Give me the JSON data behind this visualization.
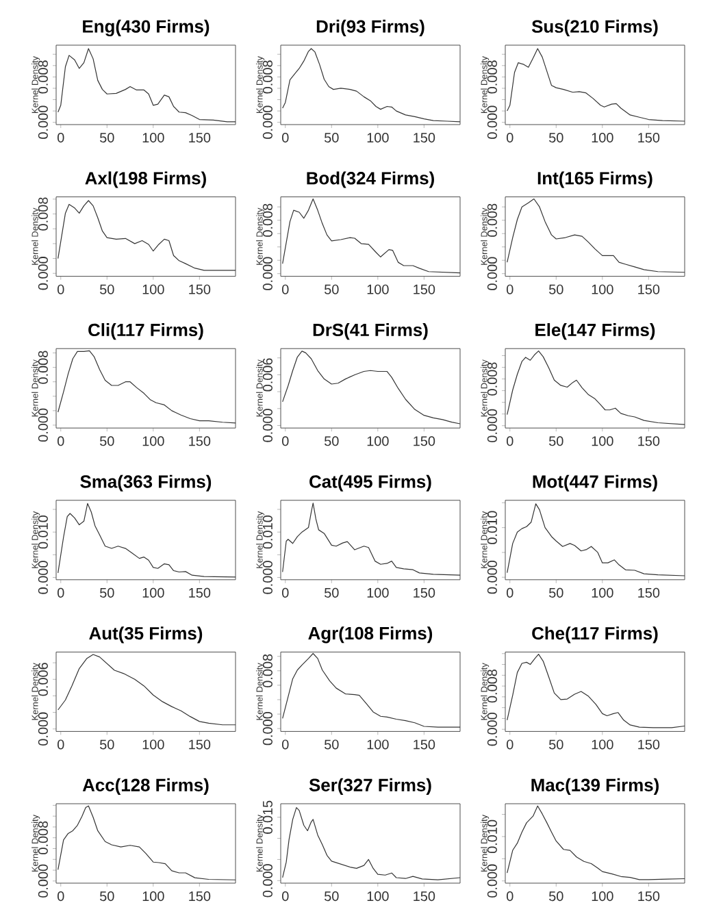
{
  "chart_data": [
    {
      "type": "line",
      "title": "Eng(430 Firms)",
      "ylabel": "Kernel Density",
      "xlim": [
        -5,
        189
      ],
      "ylim": [
        -0.0004,
        0.0136
      ],
      "xticks": [
        0,
        50,
        100,
        150
      ],
      "yticks": [
        {
          "value": 0,
          "label": "0.000"
        },
        {
          "value": 0.002,
          "label": null
        },
        {
          "value": 0.004,
          "label": null
        },
        {
          "value": 0.006,
          "label": null
        },
        {
          "value": 0.008,
          "label": "0.008"
        },
        {
          "value": 0.01,
          "label": null
        },
        {
          "value": 0.012,
          "label": null
        }
      ],
      "series": [
        {
          "color": "#333333",
          "x": [
            -3,
            0,
            5,
            9,
            15,
            20,
            25,
            30,
            35,
            40,
            45,
            50,
            60,
            70,
            75,
            82,
            90,
            95,
            100,
            105,
            112,
            117,
            122,
            128,
            135,
            142,
            150,
            165,
            180,
            189
          ],
          "values": [
            0.0018,
            0.003,
            0.0098,
            0.0118,
            0.011,
            0.0095,
            0.0105,
            0.013,
            0.0112,
            0.0074,
            0.0058,
            0.005,
            0.0051,
            0.0058,
            0.0063,
            0.0057,
            0.0057,
            0.005,
            0.003,
            0.0032,
            0.0048,
            0.0045,
            0.0028,
            0.0018,
            0.0017,
            0.0012,
            0.0005,
            0.0004,
            0.0001,
            0.0001
          ]
        }
      ]
    },
    {
      "type": "line",
      "title": "Dri(93 Firms)",
      "ylabel": "Kernel Density",
      "xlim": [
        -5,
        189
      ],
      "ylim": [
        -0.0004,
        0.0136
      ],
      "xticks": [
        0,
        50,
        100,
        150
      ],
      "yticks": [
        {
          "value": 0,
          "label": "0.000"
        },
        {
          "value": 0.002,
          "label": null
        },
        {
          "value": 0.004,
          "label": null
        },
        {
          "value": 0.006,
          "label": null
        },
        {
          "value": 0.008,
          "label": "0.008"
        },
        {
          "value": 0.01,
          "label": null
        },
        {
          "value": 0.012,
          "label": null
        }
      ],
      "series": [
        {
          "color": "#333333",
          "x": [
            -3,
            0,
            5,
            10,
            15,
            20,
            25,
            28,
            32,
            37,
            42,
            47,
            52,
            60,
            70,
            77,
            85,
            92,
            98,
            103,
            110,
            115,
            120,
            130,
            140,
            150,
            160,
            175,
            189
          ],
          "values": [
            0.0025,
            0.0035,
            0.0075,
            0.0085,
            0.0095,
            0.0108,
            0.0125,
            0.013,
            0.0124,
            0.0102,
            0.0076,
            0.0063,
            0.0058,
            0.006,
            0.0058,
            0.0055,
            0.0045,
            0.0038,
            0.0028,
            0.0023,
            0.0028,
            0.0027,
            0.002,
            0.0013,
            0.001,
            0.0006,
            0.0003,
            0.0002,
            0.0001
          ]
        }
      ]
    },
    {
      "type": "line",
      "title": "Sus(210 Firms)",
      "ylabel": "Kernel Density",
      "xlim": [
        -5,
        189
      ],
      "ylim": [
        -0.0004,
        0.0136
      ],
      "xticks": [
        0,
        50,
        100,
        150
      ],
      "yticks": [
        {
          "value": 0,
          "label": "0.000"
        },
        {
          "value": 0.002,
          "label": null
        },
        {
          "value": 0.004,
          "label": null
        },
        {
          "value": 0.006,
          "label": null
        },
        {
          "value": 0.008,
          "label": "0.008"
        },
        {
          "value": 0.01,
          "label": null
        },
        {
          "value": 0.012,
          "label": null
        }
      ],
      "series": [
        {
          "color": "#333333",
          "x": [
            -3,
            0,
            5,
            9,
            15,
            20,
            25,
            30,
            35,
            40,
            45,
            50,
            58,
            68,
            75,
            82,
            90,
            98,
            102,
            110,
            115,
            120,
            130,
            140,
            150,
            165,
            189
          ],
          "values": [
            0.002,
            0.003,
            0.0088,
            0.0105,
            0.0102,
            0.0097,
            0.0113,
            0.013,
            0.0115,
            0.009,
            0.0065,
            0.0061,
            0.0058,
            0.0053,
            0.0054,
            0.0052,
            0.0042,
            0.003,
            0.0027,
            0.0032,
            0.0033,
            0.0025,
            0.0013,
            0.0009,
            0.0005,
            0.0003,
            0.0002
          ]
        }
      ]
    },
    {
      "type": "line",
      "title": "Axl(198 Firms)",
      "ylabel": "Kernel Density",
      "xlim": [
        -5,
        189
      ],
      "ylim": [
        -0.0004,
        0.0103
      ],
      "xticks": [
        0,
        50,
        100,
        150
      ],
      "yticks": [
        {
          "value": 0,
          "label": "0.000"
        },
        {
          "value": 0.002,
          "label": null
        },
        {
          "value": 0.004,
          "label": null
        },
        {
          "value": 0.006,
          "label": null
        },
        {
          "value": 0.008,
          "label": "0.008"
        },
        {
          "value": 0.01,
          "label": null
        }
      ],
      "series": [
        {
          "color": "#333333",
          "x": [
            -3,
            5,
            9,
            15,
            20,
            25,
            30,
            35,
            40,
            45,
            50,
            60,
            70,
            80,
            88,
            95,
            100,
            106,
            112,
            117,
            122,
            128,
            135,
            145,
            155,
            170,
            189
          ],
          "values": [
            0.002,
            0.0081,
            0.0093,
            0.0088,
            0.0081,
            0.0091,
            0.0098,
            0.0091,
            0.0075,
            0.0057,
            0.0048,
            0.0046,
            0.0047,
            0.004,
            0.0044,
            0.0039,
            0.003,
            0.0039,
            0.0046,
            0.0044,
            0.0024,
            0.0017,
            0.0013,
            0.0007,
            0.0004,
            0.0004,
            0.0004
          ]
        }
      ]
    },
    {
      "type": "line",
      "title": "Bod(324 Firms)",
      "ylabel": "Kernel Density",
      "xlim": [
        -5,
        189
      ],
      "ylim": [
        -0.0004,
        0.0115
      ],
      "xticks": [
        0,
        50,
        100,
        150
      ],
      "yticks": [
        {
          "value": 0,
          "label": "0.000"
        },
        {
          "value": 0.002,
          "label": null
        },
        {
          "value": 0.004,
          "label": null
        },
        {
          "value": 0.006,
          "label": null
        },
        {
          "value": 0.008,
          "label": "0.008"
        },
        {
          "value": 0.01,
          "label": null
        }
      ],
      "series": [
        {
          "color": "#333333",
          "x": [
            -3,
            5,
            9,
            15,
            20,
            25,
            30,
            35,
            40,
            45,
            50,
            60,
            70,
            75,
            82,
            90,
            98,
            103,
            112,
            116,
            122,
            128,
            138,
            145,
            155,
            189
          ],
          "values": [
            0.0015,
            0.0078,
            0.0095,
            0.0092,
            0.0083,
            0.0095,
            0.0112,
            0.0095,
            0.0075,
            0.0058,
            0.0049,
            0.0051,
            0.0054,
            0.0053,
            0.0045,
            0.0044,
            0.0032,
            0.0025,
            0.0036,
            0.0035,
            0.0017,
            0.0012,
            0.0012,
            0.0008,
            0.0003,
            0.0001
          ]
        }
      ]
    },
    {
      "type": "line",
      "title": "Int(165 Firms)",
      "ylabel": "Kernel Density",
      "xlim": [
        -5,
        189
      ],
      "ylim": [
        -0.0004,
        0.0115
      ],
      "xticks": [
        0,
        50,
        100,
        150
      ],
      "yticks": [
        {
          "value": 0,
          "label": "0.000"
        },
        {
          "value": 0.002,
          "label": null
        },
        {
          "value": 0.004,
          "label": null
        },
        {
          "value": 0.006,
          "label": null
        },
        {
          "value": 0.008,
          "label": "0.008"
        },
        {
          "value": 0.01,
          "label": null
        }
      ],
      "series": [
        {
          "color": "#333333",
          "x": [
            -3,
            3,
            8,
            13,
            20,
            26,
            32,
            38,
            45,
            50,
            60,
            70,
            78,
            85,
            92,
            100,
            105,
            112,
            118,
            125,
            135,
            145,
            160,
            189
          ],
          "values": [
            0.0017,
            0.0054,
            0.0081,
            0.01,
            0.0106,
            0.0112,
            0.01,
            0.0078,
            0.0058,
            0.0052,
            0.0054,
            0.0058,
            0.0056,
            0.0047,
            0.0037,
            0.0027,
            0.0027,
            0.0027,
            0.0017,
            0.0014,
            0.001,
            0.0006,
            0.0003,
            0.0002
          ]
        }
      ]
    },
    {
      "type": "line",
      "title": "Cli(117 Firms)",
      "ylabel": "Kernel Density",
      "xlim": [
        -5,
        189
      ],
      "ylim": [
        -0.0004,
        0.0106
      ],
      "xticks": [
        0,
        50,
        100,
        150
      ],
      "yticks": [
        {
          "value": 0,
          "label": "0.000"
        },
        {
          "value": 0.002,
          "label": null
        },
        {
          "value": 0.004,
          "label": null
        },
        {
          "value": 0.006,
          "label": null
        },
        {
          "value": 0.008,
          "label": "0.008"
        },
        {
          "value": 0.01,
          "label": null
        }
      ],
      "series": [
        {
          "color": "#333333",
          "x": [
            -3,
            3,
            8,
            13,
            18,
            25,
            31,
            36,
            42,
            48,
            55,
            62,
            70,
            75,
            82,
            90,
            97,
            103,
            112,
            120,
            130,
            140,
            150,
            160,
            175,
            189
          ],
          "values": [
            0.0018,
            0.0046,
            0.0071,
            0.0092,
            0.0102,
            0.0102,
            0.0103,
            0.0095,
            0.0077,
            0.0062,
            0.0055,
            0.0055,
            0.006,
            0.006,
            0.0052,
            0.0044,
            0.0035,
            0.0031,
            0.0028,
            0.002,
            0.0014,
            0.0009,
            0.0006,
            0.0006,
            0.0004,
            0.0003
          ]
        }
      ]
    },
    {
      "type": "line",
      "title": "DrS(41 Firms)",
      "ylabel": "Kernel Density",
      "xlim": [
        -5,
        189
      ],
      "ylim": [
        -0.0003,
        0.0091
      ],
      "xticks": [
        0,
        50,
        100,
        150
      ],
      "yticks": [
        {
          "value": 0,
          "label": "0.000"
        },
        {
          "value": 0.002,
          "label": null
        },
        {
          "value": 0.004,
          "label": null
        },
        {
          "value": 0.006,
          "label": "0.006"
        },
        {
          "value": 0.008,
          "label": null
        }
      ],
      "series": [
        {
          "color": "#333333",
          "x": [
            -3,
            3,
            8,
            13,
            18,
            22,
            28,
            35,
            42,
            50,
            57,
            65,
            75,
            85,
            92,
            100,
            110,
            115,
            122,
            130,
            140,
            150,
            160,
            170,
            180,
            189
          ],
          "values": [
            0.0028,
            0.0047,
            0.0065,
            0.0081,
            0.0088,
            0.0086,
            0.0079,
            0.0065,
            0.0055,
            0.0049,
            0.005,
            0.0055,
            0.006,
            0.0064,
            0.0065,
            0.0064,
            0.0064,
            0.0057,
            0.0044,
            0.0031,
            0.0019,
            0.0012,
            0.0009,
            0.0007,
            0.0004,
            0.0002
          ]
        }
      ]
    },
    {
      "type": "line",
      "title": "Ele(147 Firms)",
      "ylabel": "Kernel Density",
      "xlim": [
        -5,
        189
      ],
      "ylim": [
        -0.0004,
        0.0132
      ],
      "xticks": [
        0,
        50,
        100,
        150
      ],
      "yticks": [
        {
          "value": 0,
          "label": "0.000"
        },
        {
          "value": 0.002,
          "label": null
        },
        {
          "value": 0.004,
          "label": null
        },
        {
          "value": 0.006,
          "label": null
        },
        {
          "value": 0.008,
          "label": "0.008"
        },
        {
          "value": 0.01,
          "label": null
        },
        {
          "value": 0.012,
          "label": null
        }
      ],
      "series": [
        {
          "color": "#333333",
          "x": [
            -3,
            3,
            8,
            13,
            17,
            22,
            27,
            31,
            36,
            42,
            48,
            55,
            62,
            68,
            72,
            78,
            85,
            92,
            98,
            103,
            108,
            114,
            120,
            128,
            135,
            145,
            160,
            189
          ],
          "values": [
            0.0019,
            0.0061,
            0.0088,
            0.011,
            0.0117,
            0.0112,
            0.0122,
            0.0128,
            0.0118,
            0.0099,
            0.0078,
            0.0069,
            0.0066,
            0.0074,
            0.0078,
            0.0065,
            0.0053,
            0.0046,
            0.0036,
            0.0027,
            0.0027,
            0.003,
            0.0021,
            0.0017,
            0.0015,
            0.0009,
            0.0005,
            0.0002
          ]
        }
      ]
    },
    {
      "type": "line",
      "title": "Sma(363 Firms)",
      "ylabel": "Kernel Density",
      "xlim": [
        -5,
        189
      ],
      "ylim": [
        -0.0005,
        0.017
      ],
      "xticks": [
        0,
        50,
        100,
        150
      ],
      "yticks": [
        {
          "value": 0,
          "label": "0.000"
        },
        {
          "value": 0.005,
          "label": null
        },
        {
          "value": 0.01,
          "label": "0.010"
        },
        {
          "value": 0.015,
          "label": null
        }
      ],
      "series": [
        {
          "color": "#333333",
          "x": [
            -3,
            3,
            7,
            10,
            15,
            20,
            25,
            29,
            33,
            37,
            42,
            48,
            55,
            62,
            70,
            77,
            85,
            90,
            95,
            100,
            105,
            112,
            117,
            122,
            128,
            135,
            142,
            155,
            189
          ],
          "values": [
            0.001,
            0.0089,
            0.0134,
            0.0141,
            0.0131,
            0.0116,
            0.0124,
            0.0163,
            0.0144,
            0.0114,
            0.0094,
            0.0069,
            0.0064,
            0.0069,
            0.0064,
            0.0054,
            0.0042,
            0.0045,
            0.0038,
            0.0022,
            0.002,
            0.003,
            0.0028,
            0.0015,
            0.0012,
            0.0013,
            0.0005,
            0.0002,
            0.0001
          ]
        }
      ]
    },
    {
      "type": "line",
      "title": "Cat(495 Firms)",
      "ylabel": "Kernel Density",
      "xlim": [
        -5,
        189
      ],
      "ylim": [
        -0.0005,
        0.017
      ],
      "xticks": [
        0,
        50,
        100,
        150
      ],
      "yticks": [
        {
          "value": 0,
          "label": "0.000"
        },
        {
          "value": 0.005,
          "label": null
        },
        {
          "value": 0.01,
          "label": "0.010"
        },
        {
          "value": 0.015,
          "label": null
        }
      ],
      "series": [
        {
          "color": "#333333",
          "x": [
            -3,
            1,
            3,
            8,
            13,
            18,
            25,
            28,
            30,
            33,
            36,
            42,
            50,
            55,
            62,
            67,
            75,
            85,
            90,
            97,
            103,
            110,
            115,
            120,
            128,
            138,
            145,
            160,
            189
          ],
          "values": [
            0.0012,
            0.008,
            0.0084,
            0.0075,
            0.009,
            0.01,
            0.011,
            0.0144,
            0.0164,
            0.0129,
            0.0105,
            0.0097,
            0.0071,
            0.0069,
            0.0076,
            0.0079,
            0.0061,
            0.0069,
            0.0066,
            0.0036,
            0.0029,
            0.0031,
            0.0036,
            0.0022,
            0.0019,
            0.0017,
            0.001,
            0.0007,
            0.0005
          ]
        }
      ]
    },
    {
      "type": "line",
      "title": "Mot(447 Firms)",
      "ylabel": "Kernel Density",
      "xlim": [
        -5,
        189
      ],
      "ylim": [
        -0.0005,
        0.0155
      ],
      "xticks": [
        0,
        50,
        100,
        150
      ],
      "yticks": [
        {
          "value": 0,
          "label": "0.000"
        },
        {
          "value": 0.005,
          "label": null
        },
        {
          "value": 0.01,
          "label": "0.010"
        },
        {
          "value": 0.015,
          "label": null
        }
      ],
      "series": [
        {
          "color": "#333333",
          "x": [
            -3,
            3,
            8,
            13,
            18,
            23,
            28,
            32,
            38,
            45,
            50,
            57,
            65,
            70,
            77,
            83,
            88,
            95,
            100,
            106,
            113,
            118,
            125,
            135,
            145,
            160,
            189
          ],
          "values": [
            0.0009,
            0.0068,
            0.0091,
            0.0098,
            0.0102,
            0.0111,
            0.0148,
            0.0136,
            0.01,
            0.0082,
            0.0073,
            0.0062,
            0.0068,
            0.0064,
            0.0053,
            0.0056,
            0.0062,
            0.005,
            0.0029,
            0.0029,
            0.0035,
            0.0025,
            0.0015,
            0.0014,
            0.0007,
            0.0005,
            0.0003
          ]
        }
      ]
    },
    {
      "type": "line",
      "title": "Aut(35 Firms)",
      "ylabel": "Kernel Density",
      "xlim": [
        -5,
        189
      ],
      "ylim": [
        -0.0003,
        0.0093
      ],
      "xticks": [
        0,
        50,
        100,
        150
      ],
      "yticks": [
        {
          "value": 0,
          "label": "0.000"
        },
        {
          "value": 0.002,
          "label": null
        },
        {
          "value": 0.004,
          "label": null
        },
        {
          "value": 0.006,
          "label": "0.006"
        },
        {
          "value": 0.008,
          "label": null
        }
      ],
      "series": [
        {
          "color": "#333333",
          "x": [
            -3,
            5,
            12,
            20,
            28,
            35,
            42,
            50,
            58,
            68,
            80,
            90,
            100,
            110,
            120,
            130,
            140,
            150,
            160,
            175,
            189
          ],
          "values": [
            0.0023,
            0.0035,
            0.0052,
            0.0073,
            0.0085,
            0.009,
            0.0087,
            0.0079,
            0.0071,
            0.0067,
            0.006,
            0.0052,
            0.0041,
            0.0033,
            0.0027,
            0.0022,
            0.0015,
            0.0009,
            0.0007,
            0.0005,
            0.0005
          ]
        }
      ]
    },
    {
      "type": "line",
      "title": "Agr(108 Firms)",
      "ylabel": "Kernel Density",
      "xlim": [
        -5,
        189
      ],
      "ylim": [
        -0.0004,
        0.0106
      ],
      "xticks": [
        0,
        50,
        100,
        150
      ],
      "yticks": [
        {
          "value": 0,
          "label": "0.000"
        },
        {
          "value": 0.002,
          "label": null
        },
        {
          "value": 0.004,
          "label": null
        },
        {
          "value": 0.006,
          "label": null
        },
        {
          "value": 0.008,
          "label": "0.008"
        },
        {
          "value": 0.01,
          "label": null
        }
      ],
      "series": [
        {
          "color": "#333333",
          "x": [
            -3,
            3,
            8,
            13,
            18,
            25,
            30,
            35,
            40,
            48,
            55,
            65,
            75,
            80,
            88,
            95,
            103,
            110,
            120,
            130,
            140,
            150,
            165,
            189
          ],
          "values": [
            0.0014,
            0.0044,
            0.0069,
            0.0081,
            0.0088,
            0.0097,
            0.0104,
            0.0097,
            0.0081,
            0.0066,
            0.0056,
            0.0048,
            0.0047,
            0.0046,
            0.0034,
            0.0023,
            0.0017,
            0.0016,
            0.0013,
            0.0011,
            0.0008,
            0.0003,
            0.0002,
            0.0002
          ]
        }
      ]
    },
    {
      "type": "line",
      "title": "Che(117 Firms)",
      "ylabel": "Kernel Density",
      "xlim": [
        -5,
        189
      ],
      "ylim": [
        -0.0004,
        0.0143
      ],
      "xticks": [
        0,
        50,
        100,
        150
      ],
      "yticks": [
        {
          "value": 0,
          "label": "0.000"
        },
        {
          "value": 0.002,
          "label": null
        },
        {
          "value": 0.004,
          "label": null
        },
        {
          "value": 0.006,
          "label": null
        },
        {
          "value": 0.008,
          "label": "0.008"
        },
        {
          "value": 0.01,
          "label": null
        },
        {
          "value": 0.012,
          "label": null
        },
        {
          "value": 0.014,
          "label": null
        }
      ],
      "series": [
        {
          "color": "#333333",
          "x": [
            -3,
            3,
            8,
            13,
            18,
            22,
            27,
            31,
            36,
            42,
            48,
            55,
            62,
            70,
            77,
            85,
            93,
            100,
            105,
            112,
            117,
            123,
            130,
            140,
            155,
            175,
            189
          ],
          "values": [
            0.0017,
            0.0063,
            0.0105,
            0.0122,
            0.0124,
            0.012,
            0.0131,
            0.0139,
            0.0126,
            0.0097,
            0.0067,
            0.0055,
            0.0056,
            0.0065,
            0.007,
            0.0061,
            0.0046,
            0.0029,
            0.0025,
            0.0029,
            0.0031,
            0.0017,
            0.0008,
            0.0004,
            0.0003,
            0.0003,
            0.0006
          ]
        }
      ]
    },
    {
      "type": "line",
      "title": "Acc(128 Firms)",
      "ylabel": "Kernel Density",
      "xlim": [
        -5,
        189
      ],
      "ylim": [
        -0.0004,
        0.0143
      ],
      "xticks": [
        0,
        50,
        100,
        150
      ],
      "yticks": [
        {
          "value": 0,
          "label": "0.000"
        },
        {
          "value": 0.002,
          "label": null
        },
        {
          "value": 0.004,
          "label": null
        },
        {
          "value": 0.006,
          "label": null
        },
        {
          "value": 0.008,
          "label": "0.008"
        },
        {
          "value": 0.01,
          "label": null
        },
        {
          "value": 0.012,
          "label": null
        },
        {
          "value": 0.014,
          "label": null
        }
      ],
      "series": [
        {
          "color": "#333333",
          "x": [
            -3,
            3,
            8,
            13,
            18,
            23,
            27,
            30,
            35,
            40,
            48,
            55,
            65,
            75,
            85,
            92,
            100,
            106,
            113,
            120,
            128,
            135,
            145,
            160,
            189
          ],
          "values": [
            0.0021,
            0.0076,
            0.0088,
            0.0093,
            0.0103,
            0.012,
            0.0136,
            0.0139,
            0.0118,
            0.0093,
            0.0073,
            0.0067,
            0.0063,
            0.0066,
            0.0063,
            0.0051,
            0.0035,
            0.0034,
            0.0032,
            0.0019,
            0.0015,
            0.0015,
            0.0006,
            0.0003,
            0.0002
          ]
        }
      ]
    },
    {
      "type": "line",
      "title": "Ser(327 Firms)",
      "ylabel": "Kernel Density",
      "xlim": [
        -5,
        189
      ],
      "ylim": [
        -0.0006,
        0.0182
      ],
      "xticks": [
        0,
        50,
        100,
        150
      ],
      "yticks": [
        {
          "value": 0,
          "label": "0.000"
        },
        {
          "value": 0.005,
          "label": null
        },
        {
          "value": 0.01,
          "label": null
        },
        {
          "value": 0.015,
          "label": "0.015"
        }
      ],
      "series": [
        {
          "color": "#333333",
          "x": [
            -3,
            1,
            4,
            8,
            12,
            15,
            20,
            24,
            28,
            30,
            35,
            40,
            45,
            50,
            60,
            70,
            77,
            85,
            90,
            95,
            100,
            108,
            115,
            120,
            130,
            138,
            148,
            165,
            189
          ],
          "values": [
            0.0007,
            0.0044,
            0.0097,
            0.0145,
            0.0173,
            0.0166,
            0.0131,
            0.0118,
            0.0139,
            0.0145,
            0.0108,
            0.0085,
            0.006,
            0.0046,
            0.0039,
            0.0032,
            0.0029,
            0.0036,
            0.005,
            0.0029,
            0.0015,
            0.0013,
            0.0018,
            0.0007,
            0.0005,
            0.001,
            0.0004,
            0.0002,
            0.0007
          ]
        }
      ]
    },
    {
      "type": "line",
      "title": "Mac(139 Firms)",
      "ylabel": "Kernel Density",
      "xlim": [
        -5,
        189
      ],
      "ylim": [
        -0.0005,
        0.0174
      ],
      "xticks": [
        0,
        50,
        100,
        150
      ],
      "yticks": [
        {
          "value": 0,
          "label": "0.000"
        },
        {
          "value": 0.005,
          "label": null
        },
        {
          "value": 0.01,
          "label": "0.010"
        },
        {
          "value": 0.015,
          "label": null
        }
      ],
      "series": [
        {
          "color": "#333333",
          "x": [
            -3,
            3,
            8,
            13,
            18,
            25,
            30,
            35,
            40,
            45,
            50,
            58,
            65,
            72,
            80,
            88,
            95,
            100,
            110,
            120,
            130,
            140,
            150,
            170,
            189
          ],
          "values": [
            0.0018,
            0.0069,
            0.0085,
            0.011,
            0.0131,
            0.0146,
            0.0169,
            0.0151,
            0.0131,
            0.011,
            0.009,
            0.0071,
            0.0069,
            0.0054,
            0.0044,
            0.0039,
            0.0029,
            0.0021,
            0.0016,
            0.001,
            0.0008,
            0.0003,
            0.0003,
            0.0004,
            0.0005
          ]
        }
      ]
    }
  ]
}
